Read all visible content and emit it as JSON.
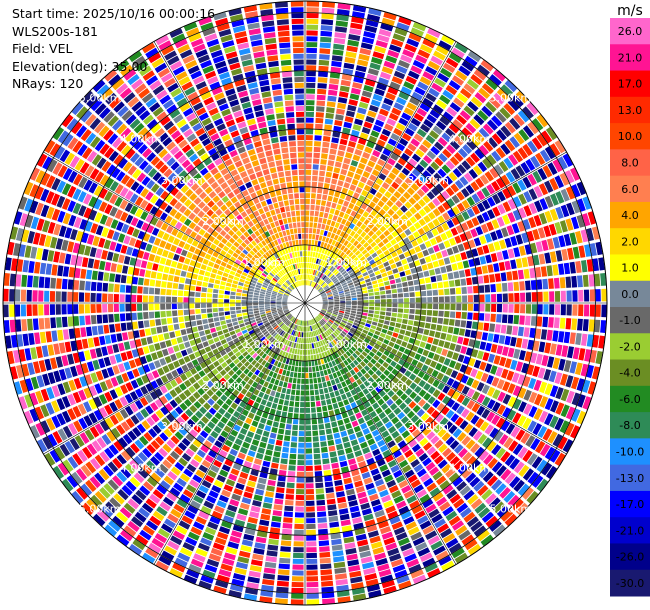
{
  "header": {
    "start_time": "Start time: 2025/10/16 00:00:16",
    "instrument": "WLS200s-181",
    "field": "Field: VEL",
    "elevation": "Elevation(deg): 35.00",
    "nrays": "NRays: 120"
  },
  "chart_data": {
    "type": "heatmap",
    "projection": "polar-ppi",
    "field": "VEL",
    "units": "m/s",
    "elevation_deg": 35.0,
    "n_rays": 120,
    "max_range_km": 5.2,
    "range_rings_km": [
      1,
      2,
      3,
      4,
      5
    ],
    "range_ring_labels": [
      "1.00km",
      "2.00km",
      "3.00km",
      "4.00km",
      "5.00km"
    ],
    "colorbar": {
      "label": "m/s",
      "ticks": [
        "26.0",
        "21.0",
        "17.0",
        "13.0",
        "10.0",
        "8.0",
        "6.0",
        "4.0",
        "2.0",
        "1.0",
        "0.0",
        "-1.0",
        "-2.0",
        "-4.0",
        "-6.0",
        "-8.0",
        "-10.0",
        "-13.0",
        "-17.0",
        "-21.0",
        "-26.0",
        "-30.0"
      ],
      "bins": [
        {
          "lo": 26,
          "hi": 30,
          "color": "#ff66cc"
        },
        {
          "lo": 21,
          "hi": 26,
          "color": "#ff1493"
        },
        {
          "lo": 17,
          "hi": 21,
          "color": "#ff0000"
        },
        {
          "lo": 13,
          "hi": 17,
          "color": "#ff2a00"
        },
        {
          "lo": 10,
          "hi": 13,
          "color": "#ff4500"
        },
        {
          "lo": 8,
          "hi": 10,
          "color": "#ff6347"
        },
        {
          "lo": 6,
          "hi": 8,
          "color": "#ff7f50"
        },
        {
          "lo": 4,
          "hi": 6,
          "color": "#ffa500"
        },
        {
          "lo": 2,
          "hi": 4,
          "color": "#ffd700"
        },
        {
          "lo": 1,
          "hi": 2,
          "color": "#ffff00"
        },
        {
          "lo": 0,
          "hi": 1,
          "color": "#778899"
        },
        {
          "lo": -1,
          "hi": 0,
          "color": "#696969"
        },
        {
          "lo": -2,
          "hi": -1,
          "color": "#9acd32"
        },
        {
          "lo": -4,
          "hi": -2,
          "color": "#6b8e23"
        },
        {
          "lo": -6,
          "hi": -4,
          "color": "#228b22"
        },
        {
          "lo": -8,
          "hi": -6,
          "color": "#2e8b57"
        },
        {
          "lo": -10,
          "hi": -8,
          "color": "#1e90ff"
        },
        {
          "lo": -13,
          "hi": -10,
          "color": "#4169e1"
        },
        {
          "lo": -17,
          "hi": -13,
          "color": "#0000ff"
        },
        {
          "lo": -21,
          "hi": -17,
          "color": "#0000cd"
        },
        {
          "lo": -26,
          "hi": -21,
          "color": "#00008b"
        },
        {
          "lo": -30,
          "hi": -26,
          "color": "#191970"
        }
      ]
    },
    "pattern": {
      "description": "noise beyond about 2.8 km; structured velocity field inside",
      "positive_azimuth_deg": 0,
      "negative_azimuth_deg": 180
    }
  }
}
